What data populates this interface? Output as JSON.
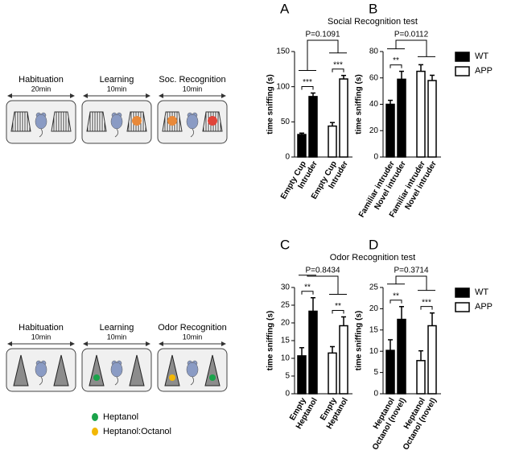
{
  "diagrams": {
    "social": {
      "stages": [
        {
          "label": "Habituation",
          "duration": "20min"
        },
        {
          "label": "Learning",
          "duration": "10min"
        },
        {
          "label": "Soc. Recognition",
          "duration": "10min"
        }
      ]
    },
    "odor": {
      "stages": [
        {
          "label": "Habituation",
          "duration": "10min"
        },
        {
          "label": "Learning",
          "duration": "10min"
        },
        {
          "label": "Odor Recognition",
          "duration": "10min"
        }
      ],
      "legend": [
        {
          "label": "Heptanol",
          "color": "#1aa34a"
        },
        {
          "label": "Heptanol:Octanol",
          "color": "#f2b705"
        }
      ]
    }
  },
  "chart_data": [
    {
      "type": "bar",
      "panel": "A",
      "section_title": "Social Recognition test",
      "ylabel": "time sniffing (s)",
      "ylim": [
        0,
        150
      ],
      "yticks": [
        0,
        50,
        100,
        150
      ],
      "categories": [
        "Empty Cup",
        "Intruder",
        "Empty Cup",
        "Intruder"
      ],
      "series": [
        {
          "color": "#000000",
          "values": [
            32,
            86,
            null,
            null
          ],
          "errors": [
            2,
            5,
            null,
            null
          ]
        },
        {
          "color": "#ffffff",
          "values": [
            null,
            null,
            44,
            111
          ],
          "errors": [
            null,
            null,
            5,
            5
          ]
        }
      ],
      "pair_labels": [
        "***",
        "***"
      ],
      "p_label": "P=0.1091"
    },
    {
      "type": "bar",
      "panel": "B",
      "ylabel": "time sniffing (s)",
      "ylim": [
        0,
        80
      ],
      "yticks": [
        0,
        20,
        40,
        60,
        80
      ],
      "categories": [
        "Familiar  intruder",
        "Novel  intruder",
        "Familiar  intruder",
        "Novel  intruder"
      ],
      "series": [
        {
          "name": "WT",
          "color": "#000000",
          "values": [
            40,
            59,
            null,
            null
          ],
          "errors": [
            3,
            6,
            null,
            null
          ]
        },
        {
          "name": "APP",
          "color": "#ffffff",
          "values": [
            null,
            null,
            65,
            58
          ],
          "errors": [
            null,
            null,
            5,
            4
          ]
        }
      ],
      "legend": "right",
      "pair_labels": [
        "**"
      ],
      "p_label": "P=0.0112"
    },
    {
      "type": "bar",
      "panel": "C",
      "section_title": "Odor Recognition test",
      "ylabel": "time sniffing (s)",
      "ylim": [
        0,
        30
      ],
      "yticks": [
        0,
        5,
        10,
        15,
        20,
        25,
        30
      ],
      "categories": [
        "Empty",
        "Heptanol",
        "Empty",
        "Heptanol"
      ],
      "series": [
        {
          "color": "#000000",
          "values": [
            10.7,
            23.3,
            null,
            null
          ],
          "errors": [
            2.3,
            3.8,
            null,
            null
          ]
        },
        {
          "color": "#ffffff",
          "values": [
            null,
            null,
            11.5,
            19.2
          ],
          "errors": [
            null,
            null,
            1.8,
            2.5
          ]
        }
      ],
      "pair_labels": [
        "**",
        "**"
      ],
      "p_label": "P=0.8434"
    },
    {
      "type": "bar",
      "panel": "D",
      "ylabel": "time sniffing (s)",
      "ylim": [
        0,
        25
      ],
      "yticks": [
        0,
        5,
        10,
        15,
        20,
        25
      ],
      "categories": [
        "Heptanol",
        "Octanol (novel)",
        "Heptanol",
        "Octanol (novel)"
      ],
      "series": [
        {
          "name": "WT",
          "color": "#000000",
          "values": [
            10.2,
            17.5,
            null,
            null
          ],
          "errors": [
            2.5,
            3,
            null,
            null
          ]
        },
        {
          "name": "APP",
          "color": "#ffffff",
          "values": [
            null,
            null,
            7.8,
            16
          ],
          "errors": [
            null,
            null,
            2.3,
            3
          ]
        }
      ],
      "legend": "right",
      "pair_labels": [
        "**",
        "***"
      ],
      "p_label": "P=0.3714"
    }
  ]
}
